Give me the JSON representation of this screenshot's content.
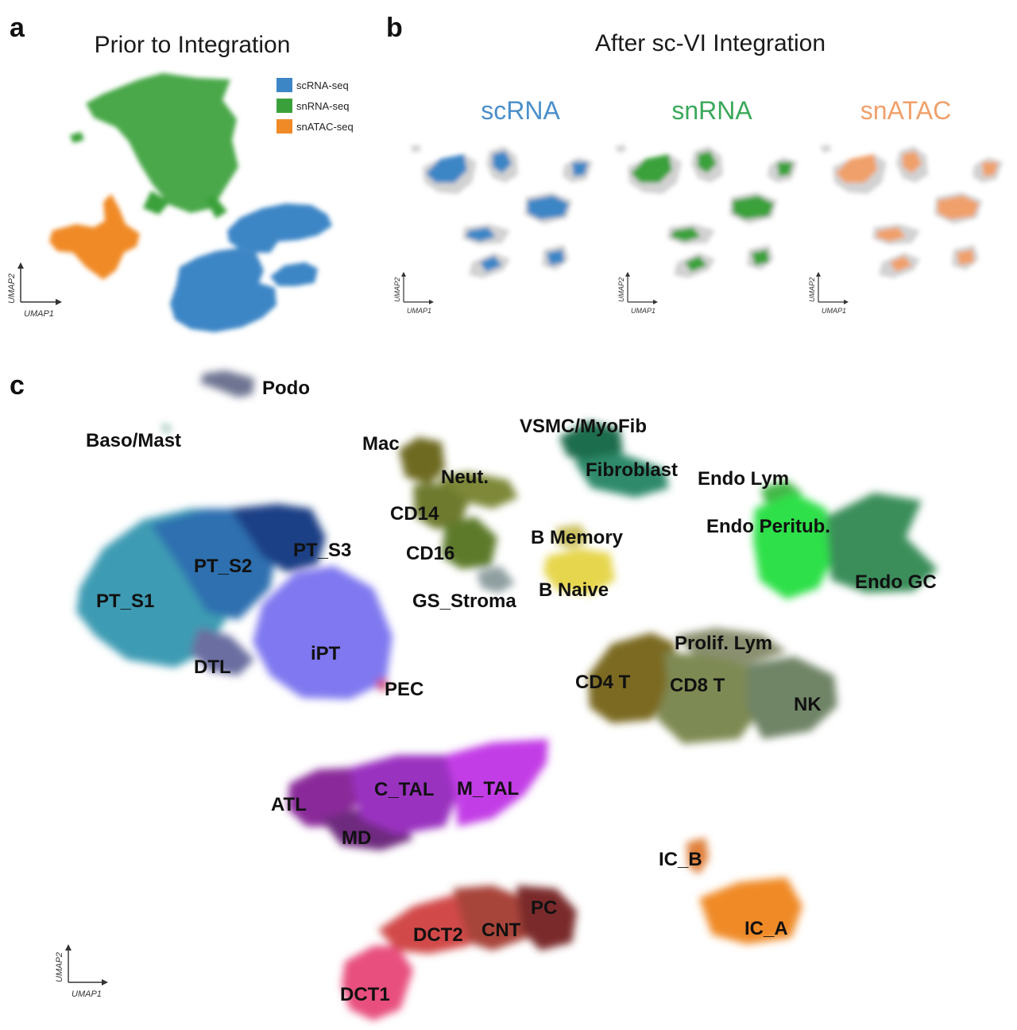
{
  "panels": {
    "a": "a",
    "b": "b",
    "c": "c"
  },
  "chart_data": [
    {
      "type": "scatter",
      "id": "a",
      "title": "Prior to Integration",
      "xlabel": "UMAP1",
      "ylabel": "UMAP2",
      "legend_position": "top-right",
      "legend": [
        {
          "label": "scRNA-seq",
          "color": "#3d86c6"
        },
        {
          "label": "snRNA-seq",
          "color": "#3aa13a"
        },
        {
          "label": "snATAC-seq",
          "color": "#f08a26"
        }
      ],
      "series": [
        {
          "name": "snRNA-seq",
          "color": "#3aa13a",
          "centroid": [
            -0.1,
            0.55
          ]
        },
        {
          "name": "snATAC-seq",
          "color": "#f08a26",
          "centroid": [
            -0.6,
            -0.15
          ]
        },
        {
          "name": "scRNA-seq",
          "color": "#3d86c6",
          "centroid": [
            0.3,
            -0.35
          ]
        }
      ]
    },
    {
      "type": "scatter",
      "id": "b",
      "title": "After sc-VI Integration",
      "xlabel": "UMAP1",
      "ylabel": "UMAP2",
      "background_color": "#d2d2d2",
      "facets": [
        {
          "label": "scRNA",
          "color": "#3d86c6"
        },
        {
          "label": "snRNA",
          "color": "#3aa13a"
        },
        {
          "label": "snATAC",
          "color": "#f0a06a"
        }
      ]
    },
    {
      "type": "scatter",
      "id": "c",
      "xlabel": "UMAP1",
      "ylabel": "UMAP2",
      "clusters": [
        {
          "label": "Podo",
          "color": "#6e7591"
        },
        {
          "label": "Baso/Mast",
          "color": "#1e6e52"
        },
        {
          "label": "Mac",
          "color": "#6e6a24"
        },
        {
          "label": "Neut.",
          "color": "#7e8838"
        },
        {
          "label": "CD14",
          "color": "#6e7a2e"
        },
        {
          "label": "CD16",
          "color": "#5d7a2a"
        },
        {
          "label": "VSMC/MyoFib",
          "color": "#1e6d4e"
        },
        {
          "label": "Fibroblast",
          "color": "#2e8a6a"
        },
        {
          "label": "Endo Lym",
          "color": "#45b84a"
        },
        {
          "label": "Endo Peritub.",
          "color": "#2ee04a"
        },
        {
          "label": "Endo GC",
          "color": "#3a8e5a"
        },
        {
          "label": "B Memory",
          "color": "#c9bd5a"
        },
        {
          "label": "B Naive",
          "color": "#e6d64e"
        },
        {
          "label": "GS_Stroma",
          "color": "#8f9fa0"
        },
        {
          "label": "PT_S1",
          "color": "#3c9bb3"
        },
        {
          "label": "PT_S2",
          "color": "#2d6fb0"
        },
        {
          "label": "PT_S3",
          "color": "#1e3f86"
        },
        {
          "label": "DTL",
          "color": "#6b6ea0"
        },
        {
          "label": "iPT",
          "color": "#7f78f0"
        },
        {
          "label": "PEC",
          "color": "#d0507e"
        },
        {
          "label": "Prolif. Lym",
          "color": "#8a9070"
        },
        {
          "label": "CD4 T",
          "color": "#7b6a24"
        },
        {
          "label": "CD8 T",
          "color": "#7e8a52"
        },
        {
          "label": "NK",
          "color": "#6f8466"
        },
        {
          "label": "ATL",
          "color": "#8a2a9a"
        },
        {
          "label": "C_TAL",
          "color": "#9a30c0"
        },
        {
          "label": "M_TAL",
          "color": "#c33ee6"
        },
        {
          "label": "MD",
          "color": "#6e2a7e"
        },
        {
          "label": "IC_B",
          "color": "#e0803a"
        },
        {
          "label": "IC_A",
          "color": "#f08a26"
        },
        {
          "label": "DCT1",
          "color": "#e8507e"
        },
        {
          "label": "DCT2",
          "color": "#d24a4a"
        },
        {
          "label": "CNT",
          "color": "#a8443a"
        },
        {
          "label": "PC",
          "color": "#7a2a2a"
        }
      ]
    }
  ]
}
